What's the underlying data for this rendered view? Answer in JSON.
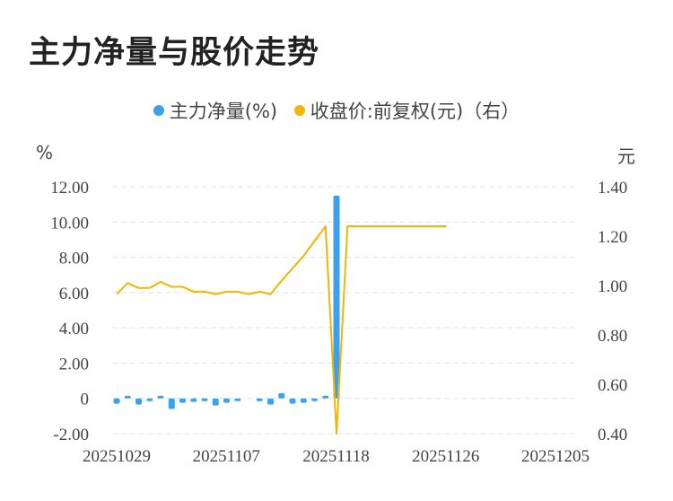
{
  "title": "主力净量与股价走势",
  "colors": {
    "bar": "#3aa0f0",
    "line": "#f5b400",
    "grid": "#e3e3e3"
  },
  "legend": [
    {
      "label": "主力净量(%)",
      "color": "#3aa0f0"
    },
    {
      "label": "收盘价:前复权(元)（右）",
      "color": "#f5b400"
    }
  ],
  "units": {
    "left": "%",
    "right": "元"
  },
  "chart_data": {
    "type": "bar+line",
    "x_ticks": [
      "20251029",
      "20251107",
      "20251118",
      "20251126",
      "20251205"
    ],
    "y_left": {
      "min": -2,
      "max": 12,
      "step": 2,
      "tick_labels": [
        "-2.00",
        "0",
        "2.00",
        "4.00",
        "6.00",
        "8.00",
        "10.00",
        "12.00"
      ]
    },
    "y_right": {
      "min": 0.4,
      "max": 1.4,
      "step": 0.2,
      "tick_labels": [
        "0.40",
        "0.60",
        "0.80",
        "1.00",
        "1.20",
        "1.40"
      ]
    },
    "grid": true,
    "legend_position": "top",
    "series": [
      {
        "name": "主力净量(%)",
        "type": "bar",
        "axis": "left",
        "values": [
          -0.3,
          0.05,
          -0.35,
          -0.05,
          0.1,
          -0.6,
          -0.25,
          -0.2,
          -0.15,
          -0.4,
          -0.25,
          -0.02,
          0,
          -0.1,
          -0.35,
          0.3,
          -0.3,
          -0.25,
          -0.02,
          0.12,
          11.5,
          0,
          0,
          0,
          0,
          0,
          0,
          0,
          0,
          0,
          0
        ]
      },
      {
        "name": "收盘价:前复权(元)（右）",
        "type": "line",
        "axis": "right",
        "values": [
          0.965,
          1.01,
          0.99,
          0.99,
          1.015,
          0.995,
          0.995,
          0.975,
          0.975,
          0.965,
          0.975,
          0.975,
          0.965,
          0.975,
          0.965,
          1.02,
          1.07,
          1.12,
          1.18,
          1.24,
          0.4,
          1.24,
          1.24,
          1.24,
          1.24,
          1.24,
          1.24,
          1.24,
          1.24,
          1.24,
          1.24
        ]
      }
    ]
  }
}
